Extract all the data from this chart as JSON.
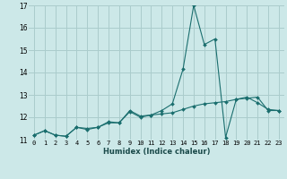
{
  "title": "",
  "xlabel": "Humidex (Indice chaleur)",
  "bg_color": "#cce8e8",
  "grid_color": "#aacccc",
  "line_color": "#1a6e6e",
  "xlim": [
    -0.5,
    23.5
  ],
  "ylim": [
    11,
    17
  ],
  "yticks": [
    11,
    12,
    13,
    14,
    15,
    16,
    17
  ],
  "xtick_labels": [
    "0",
    "1",
    "2",
    "3",
    "4",
    "5",
    "6",
    "7",
    "8",
    "9",
    "10",
    "11",
    "12",
    "13",
    "14",
    "15",
    "16",
    "17",
    "18",
    "19",
    "20",
    "21",
    "22",
    "23"
  ],
  "xtick_vals": [
    0,
    1,
    2,
    3,
    4,
    5,
    6,
    7,
    8,
    9,
    10,
    11,
    12,
    13,
    14,
    15,
    16,
    17,
    18,
    19,
    20,
    21,
    22,
    23
  ],
  "line1_x": [
    0,
    1,
    2,
    3,
    4,
    5,
    6,
    7,
    8,
    9,
    10,
    11,
    12,
    13,
    14,
    15,
    16,
    17,
    18,
    19,
    20,
    21,
    22,
    23
  ],
  "line1_y": [
    11.2,
    11.4,
    11.2,
    11.15,
    11.55,
    11.5,
    11.55,
    11.75,
    11.75,
    12.25,
    12.0,
    12.1,
    12.15,
    12.2,
    12.35,
    12.5,
    12.6,
    12.65,
    12.7,
    12.8,
    12.85,
    12.9,
    12.3,
    12.3
  ],
  "line2_x": [
    0,
    1,
    2,
    3,
    4,
    5,
    6,
    7,
    8,
    9,
    10,
    11,
    12,
    13,
    14,
    15,
    16,
    17,
    18,
    19,
    20,
    21,
    22,
    23
  ],
  "line2_y": [
    11.2,
    11.4,
    11.2,
    11.15,
    11.55,
    11.45,
    11.55,
    11.8,
    11.75,
    12.3,
    12.05,
    12.1,
    12.3,
    12.6,
    14.15,
    17.0,
    15.25,
    15.5,
    11.1,
    12.8,
    12.9,
    12.65,
    12.35,
    12.3
  ],
  "xlabel_fontsize": 6,
  "tick_fontsize": 5,
  "ytick_fontsize": 5.5
}
